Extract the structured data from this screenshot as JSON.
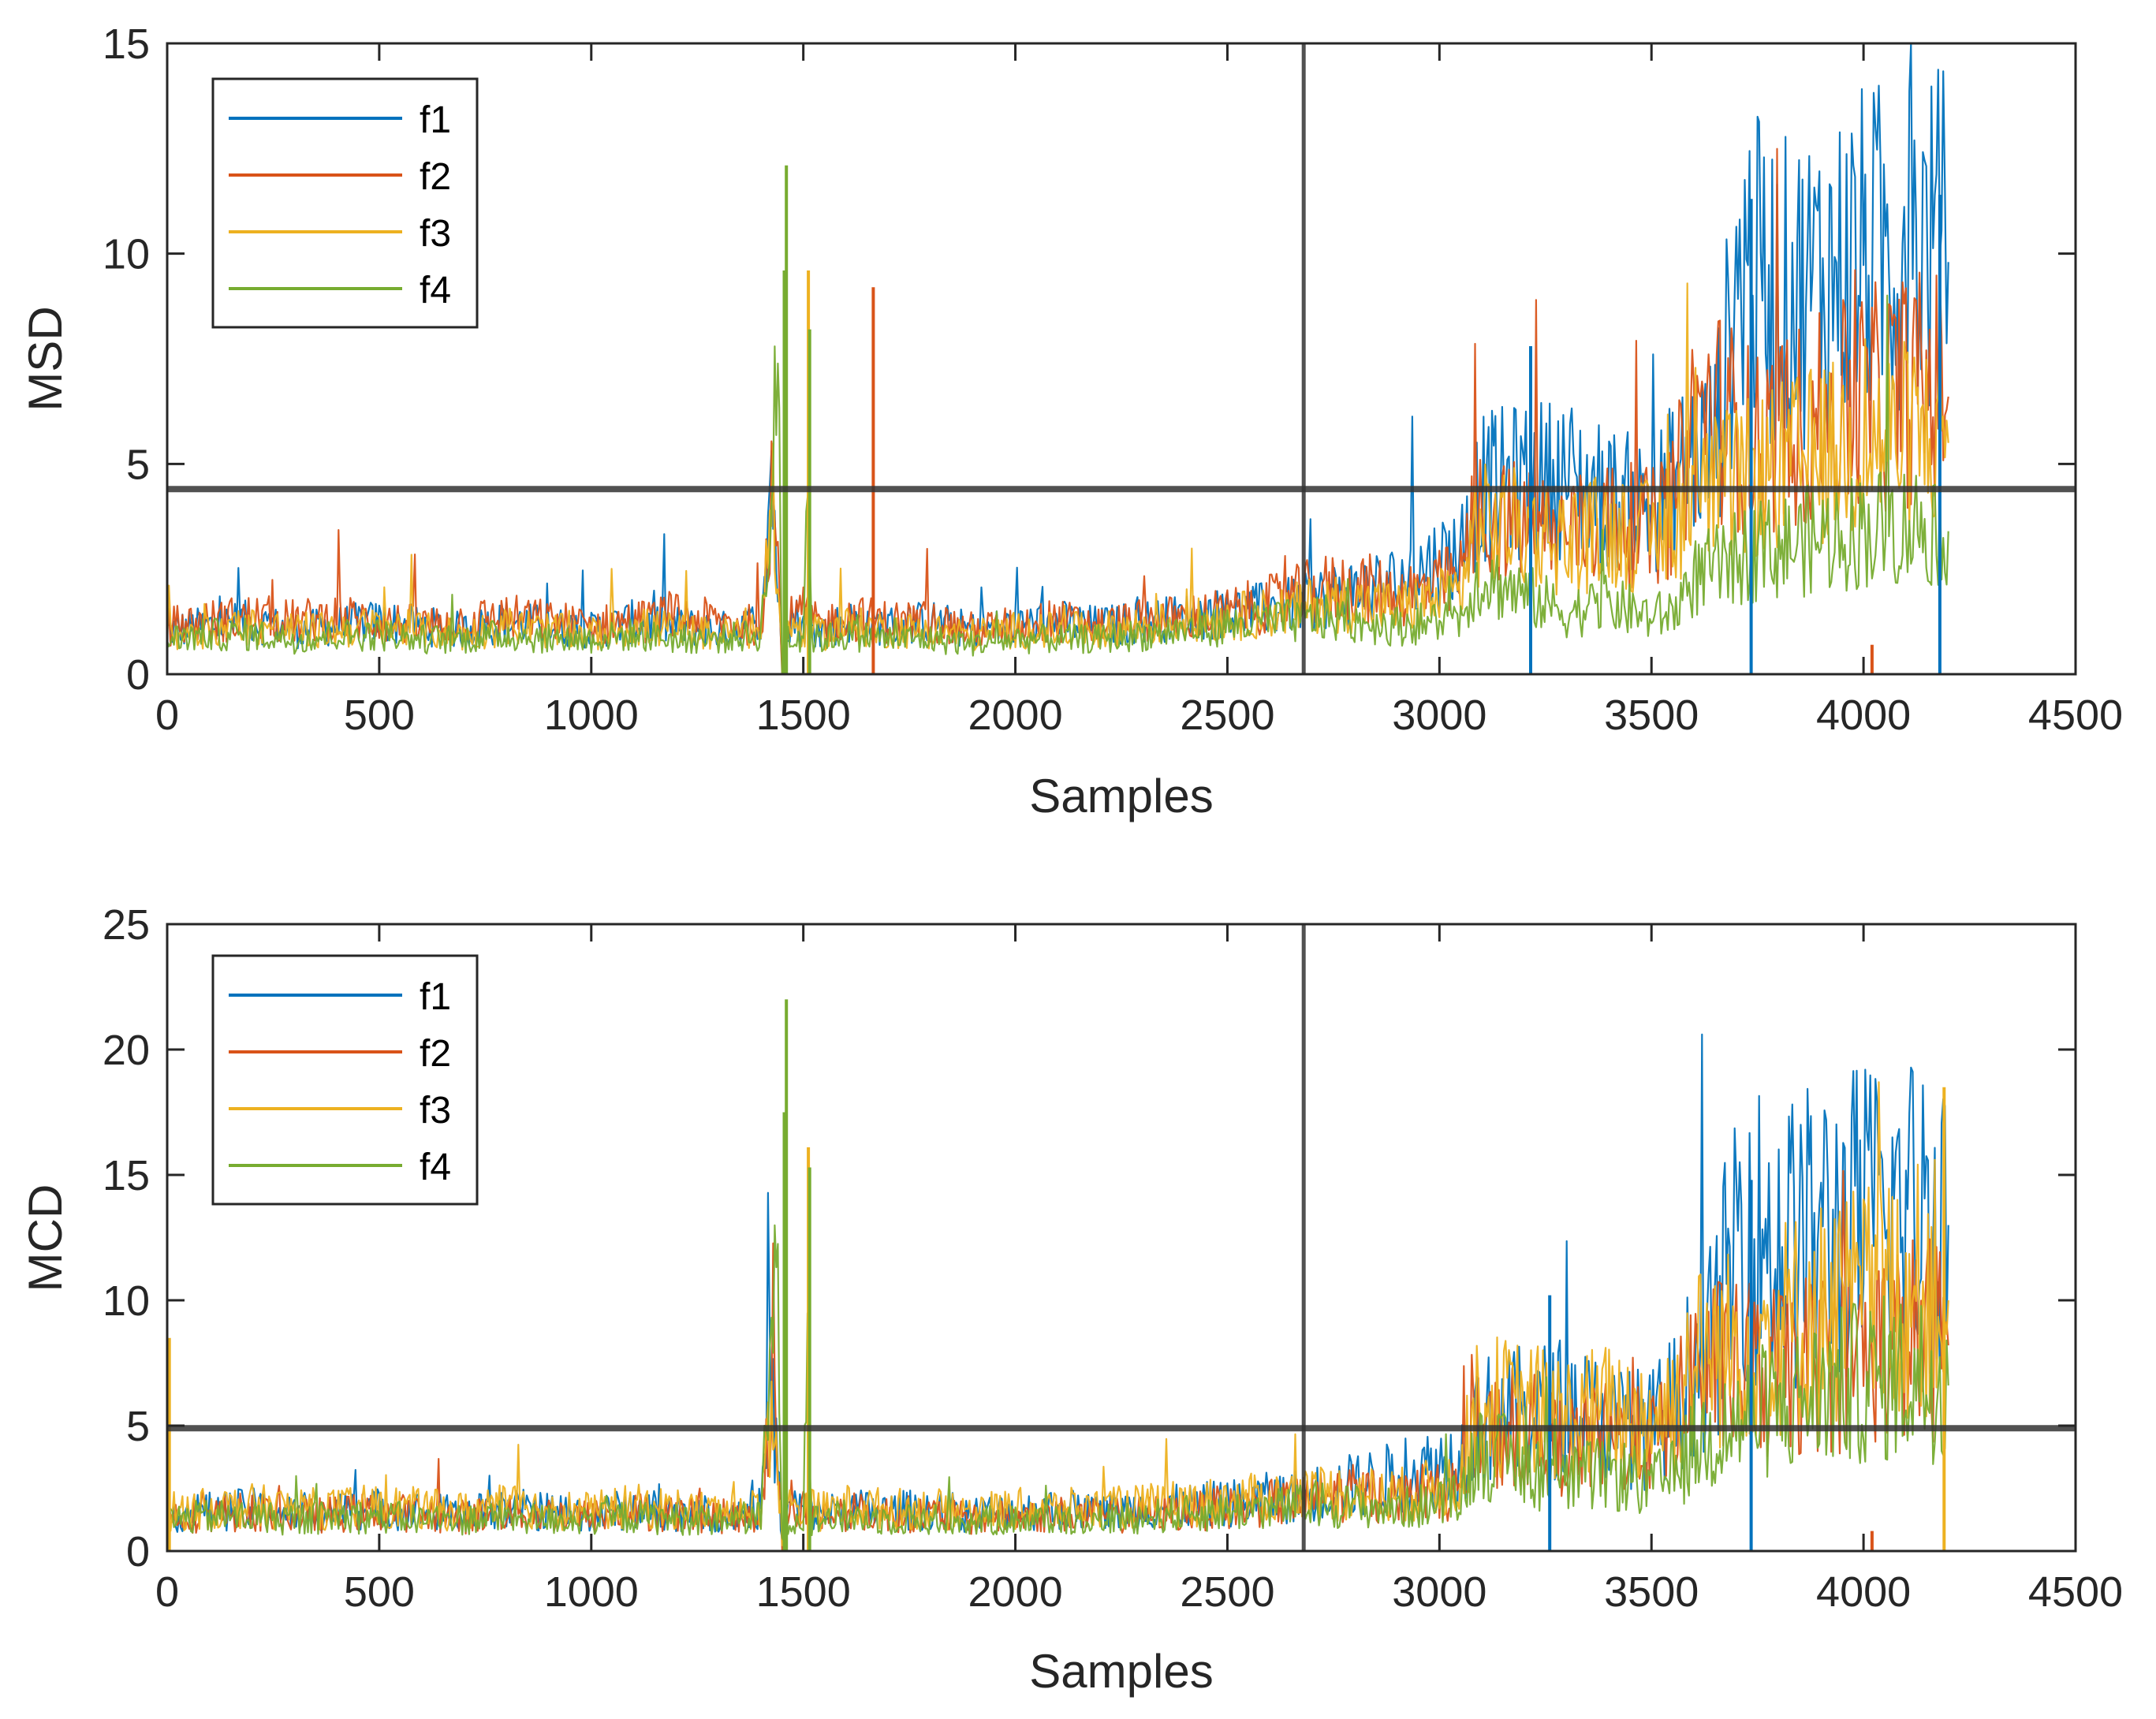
{
  "colors": {
    "f1": "#0072BD",
    "f2": "#D95319",
    "f3": "#EDB120",
    "f4": "#77AC30",
    "reference": "#333333",
    "axis": "#262626"
  },
  "chart_data": [
    {
      "type": "line",
      "title": "",
      "xlabel": "Samples",
      "ylabel": "MSD",
      "xlim": [
        0,
        4500
      ],
      "ylim": [
        0,
        15
      ],
      "xticks": [
        0,
        500,
        1000,
        1500,
        2000,
        2500,
        3000,
        3500,
        4000,
        4500
      ],
      "yticks": [
        0,
        5,
        10,
        15
      ],
      "threshold_y": 4.4,
      "change_point_x": 2680,
      "legend": {
        "location": "top-left",
        "entries": [
          "f1",
          "f2",
          "f3",
          "f4"
        ]
      },
      "x": [
        0,
        100,
        200,
        300,
        400,
        500,
        600,
        700,
        800,
        900,
        1000,
        1100,
        1200,
        1300,
        1400,
        1425,
        1440,
        1450,
        1460,
        1480,
        1500,
        1510,
        1520,
        1540,
        1600,
        1700,
        1800,
        1900,
        2000,
        2100,
        2200,
        2300,
        2400,
        2500,
        2600,
        2680,
        2700,
        2800,
        2900,
        3000,
        3050,
        3080,
        3100,
        3200,
        3300,
        3400,
        3500,
        3550,
        3600,
        3650,
        3700,
        3720,
        3750,
        3800,
        3900,
        4000,
        4100,
        4200
      ],
      "series": [
        {
          "name": "f1",
          "values": [
            1.0,
            1.1,
            1.2,
            1.0,
            1.1,
            1.2,
            1.1,
            1.0,
            1.2,
            1.1,
            1.0,
            1.2,
            1.1,
            1.0,
            1.2,
            4.9,
            2.0,
            0.2,
            1.2,
            1.3,
            1.1,
            1.2,
            1.1,
            1.0,
            1.2,
            1.1,
            1.2,
            1.0,
            1.1,
            1.2,
            1.1,
            1.2,
            1.3,
            1.4,
            1.5,
            1.6,
            1.7,
            1.9,
            2.1,
            2.6,
            2.8,
            3.9,
            4.2,
            4.4,
            4.5,
            4.0,
            3.8,
            4.4,
            5.0,
            5.3,
            8.6,
            9.4,
            9.0,
            8.6,
            9.0,
            9.5,
            9.7,
            9.8
          ]
        },
        {
          "name": "f2",
          "values": [
            1.1,
            1.2,
            1.3,
            1.2,
            1.3,
            1.2,
            1.1,
            1.2,
            1.3,
            1.2,
            1.1,
            1.2,
            1.3,
            1.2,
            1.1,
            4.5,
            2.5,
            0.2,
            1.2,
            1.3,
            1.4,
            1.3,
            1.2,
            1.1,
            1.3,
            1.2,
            1.2,
            1.0,
            1.1,
            1.2,
            1.1,
            1.2,
            1.3,
            1.4,
            1.6,
            1.8,
            1.9,
            2.0,
            1.8,
            2.0,
            2.2,
            3.5,
            3.6,
            3.4,
            3.2,
            3.5,
            3.3,
            3.8,
            5.8,
            6.0,
            5.6,
            5.4,
            5.2,
            5.5,
            5.8,
            6.2,
            6.5,
            6.6
          ]
        },
        {
          "name": "f3",
          "values": [
            0.9,
            1.0,
            1.1,
            1.0,
            1.0,
            1.1,
            1.0,
            0.9,
            1.1,
            1.0,
            0.9,
            1.1,
            1.0,
            0.9,
            1.0,
            4.2,
            2.2,
            0.2,
            1.0,
            1.1,
            1.0,
            1.1,
            1.0,
            0.9,
            1.1,
            1.0,
            1.0,
            0.9,
            1.0,
            1.0,
            1.0,
            1.1,
            1.2,
            1.3,
            1.4,
            1.5,
            1.6,
            1.6,
            1.5,
            1.7,
            1.9,
            3.2,
            3.4,
            3.3,
            3.0,
            3.3,
            3.1,
            3.5,
            4.0,
            4.2,
            4.3,
            4.4,
            4.5,
            4.7,
            5.0,
            5.2,
            5.4,
            5.5
          ]
        },
        {
          "name": "f4",
          "values": [
            0.8,
            0.9,
            0.9,
            0.8,
            0.9,
            0.9,
            0.8,
            0.8,
            0.9,
            0.8,
            0.8,
            0.9,
            0.8,
            0.8,
            0.9,
            3.8,
            7.0,
            0.1,
            0.9,
            0.8,
            0.9,
            5.5,
            0.8,
            0.8,
            0.9,
            0.8,
            0.8,
            0.7,
            0.8,
            0.8,
            0.8,
            0.9,
            1.0,
            1.1,
            1.2,
            1.2,
            1.3,
            1.2,
            1.1,
            1.2,
            1.3,
            2.0,
            2.2,
            1.8,
            1.4,
            1.6,
            1.3,
            1.4,
            2.2,
            2.4,
            2.6,
            2.7,
            2.8,
            2.9,
            3.1,
            3.3,
            3.4,
            3.4
          ]
        }
      ],
      "peaks": [
        {
          "series": "f4",
          "x": 1460,
          "y": 12.1
        },
        {
          "series": "f4",
          "x": 1455,
          "y": 9.6
        },
        {
          "series": "f3",
          "x": 1512,
          "y": 9.6
        },
        {
          "series": "f4",
          "x": 1515,
          "y": 8.2
        },
        {
          "series": "f2",
          "x": 1665,
          "y": 9.2
        },
        {
          "series": "f1",
          "x": 3215,
          "y": 7.8
        },
        {
          "series": "f1",
          "x": 3735,
          "y": 11.3
        },
        {
          "series": "f1",
          "x": 4180,
          "y": 11.4
        },
        {
          "series": "f2",
          "x": 4020,
          "y": 0.7
        }
      ]
    },
    {
      "type": "line",
      "title": "",
      "xlabel": "Samples",
      "ylabel": "MCD",
      "xlim": [
        0,
        4500
      ],
      "ylim": [
        0,
        25
      ],
      "xticks": [
        0,
        500,
        1000,
        1500,
        2000,
        2500,
        3000,
        3500,
        4000,
        4500
      ],
      "yticks": [
        0,
        5,
        10,
        15,
        20,
        25
      ],
      "threshold_y": 4.9,
      "change_point_x": 2680,
      "legend": {
        "location": "top-left",
        "entries": [
          "f1",
          "f2",
          "f3",
          "f4"
        ]
      },
      "x": [
        0,
        100,
        200,
        300,
        400,
        500,
        600,
        700,
        800,
        900,
        1000,
        1100,
        1200,
        1300,
        1400,
        1425,
        1440,
        1450,
        1460,
        1480,
        1500,
        1510,
        1520,
        1540,
        1600,
        1700,
        1800,
        1900,
        2000,
        2100,
        2200,
        2300,
        2400,
        2500,
        2600,
        2680,
        2700,
        2800,
        2900,
        3000,
        3050,
        3080,
        3100,
        3200,
        3300,
        3400,
        3500,
        3550,
        3600,
        3650,
        3700,
        3720,
        3750,
        3800,
        3900,
        4000,
        4100,
        4200
      ],
      "series": [
        {
          "name": "f1",
          "values": [
            1.4,
            1.5,
            1.6,
            1.4,
            1.5,
            1.6,
            1.5,
            1.4,
            1.6,
            1.5,
            1.4,
            1.6,
            1.5,
            1.4,
            1.6,
            6.5,
            3.0,
            0.3,
            1.6,
            1.7,
            1.5,
            1.6,
            1.5,
            1.4,
            1.6,
            1.5,
            1.6,
            1.4,
            1.5,
            1.6,
            1.5,
            1.6,
            1.7,
            1.8,
            2.0,
            2.1,
            2.2,
            2.5,
            2.8,
            3.2,
            3.5,
            4.8,
            5.0,
            5.2,
            5.5,
            4.8,
            4.6,
            5.5,
            7.0,
            8.0,
            12.0,
            13.0,
            12.0,
            11.5,
            12.0,
            12.5,
            12.8,
            13.0
          ]
        },
        {
          "name": "f2",
          "values": [
            1.3,
            1.4,
            1.5,
            1.3,
            1.4,
            1.5,
            1.4,
            1.3,
            1.5,
            1.4,
            1.3,
            1.5,
            1.4,
            1.3,
            1.4,
            6.0,
            3.2,
            0.3,
            1.4,
            1.5,
            1.6,
            1.5,
            1.4,
            1.3,
            1.5,
            1.4,
            1.4,
            1.2,
            1.3,
            1.4,
            1.3,
            1.4,
            1.5,
            1.6,
            1.8,
            1.9,
            2.0,
            2.2,
            2.0,
            2.2,
            2.4,
            4.2,
            4.5,
            4.3,
            4.0,
            4.3,
            4.1,
            4.6,
            6.8,
            7.0,
            6.8,
            6.6,
            6.4,
            6.8,
            7.2,
            7.6,
            8.0,
            8.2
          ]
        },
        {
          "name": "f3",
          "values": [
            1.5,
            1.6,
            1.7,
            1.6,
            1.6,
            1.7,
            1.6,
            1.5,
            1.7,
            1.6,
            1.5,
            1.7,
            1.6,
            1.5,
            1.6,
            6.2,
            3.5,
            0.3,
            1.6,
            1.7,
            1.6,
            1.7,
            1.6,
            1.5,
            1.7,
            1.6,
            1.6,
            1.5,
            1.6,
            1.6,
            1.6,
            1.7,
            1.8,
            1.9,
            2.0,
            2.1,
            2.2,
            2.2,
            2.1,
            2.4,
            2.7,
            5.2,
            5.5,
            5.4,
            5.0,
            5.3,
            5.0,
            5.6,
            7.2,
            7.5,
            7.8,
            8.0,
            8.2,
            8.5,
            9.0,
            9.4,
            9.8,
            10.0
          ]
        },
        {
          "name": "f4",
          "values": [
            1.2,
            1.3,
            1.3,
            1.2,
            1.3,
            1.3,
            1.2,
            1.2,
            1.3,
            1.2,
            1.2,
            1.3,
            1.2,
            1.2,
            1.3,
            7.0,
            12.0,
            0.2,
            1.3,
            1.2,
            1.3,
            10.0,
            1.2,
            1.2,
            1.3,
            1.2,
            1.2,
            1.1,
            1.2,
            1.2,
            1.2,
            1.3,
            1.4,
            1.5,
            1.6,
            1.7,
            1.8,
            1.7,
            1.6,
            1.8,
            2.0,
            3.5,
            3.8,
            3.2,
            2.6,
            3.0,
            2.5,
            2.8,
            4.0,
            4.4,
            4.8,
            5.0,
            5.2,
            5.5,
            6.0,
            6.4,
            6.6,
            6.6
          ]
        }
      ],
      "peaks": [
        {
          "series": "f4",
          "x": 1460,
          "y": 22.0
        },
        {
          "series": "f4",
          "x": 1455,
          "y": 17.5
        },
        {
          "series": "f3",
          "x": 1512,
          "y": 16.1
        },
        {
          "series": "f4",
          "x": 1515,
          "y": 15.3
        },
        {
          "series": "f3",
          "x": 5,
          "y": 8.5
        },
        {
          "series": "f1",
          "x": 3260,
          "y": 10.2
        },
        {
          "series": "f3",
          "x": 4190,
          "y": 18.5
        },
        {
          "series": "f1",
          "x": 3735,
          "y": 14.8
        },
        {
          "series": "f2",
          "x": 4020,
          "y": 0.8
        }
      ]
    }
  ]
}
